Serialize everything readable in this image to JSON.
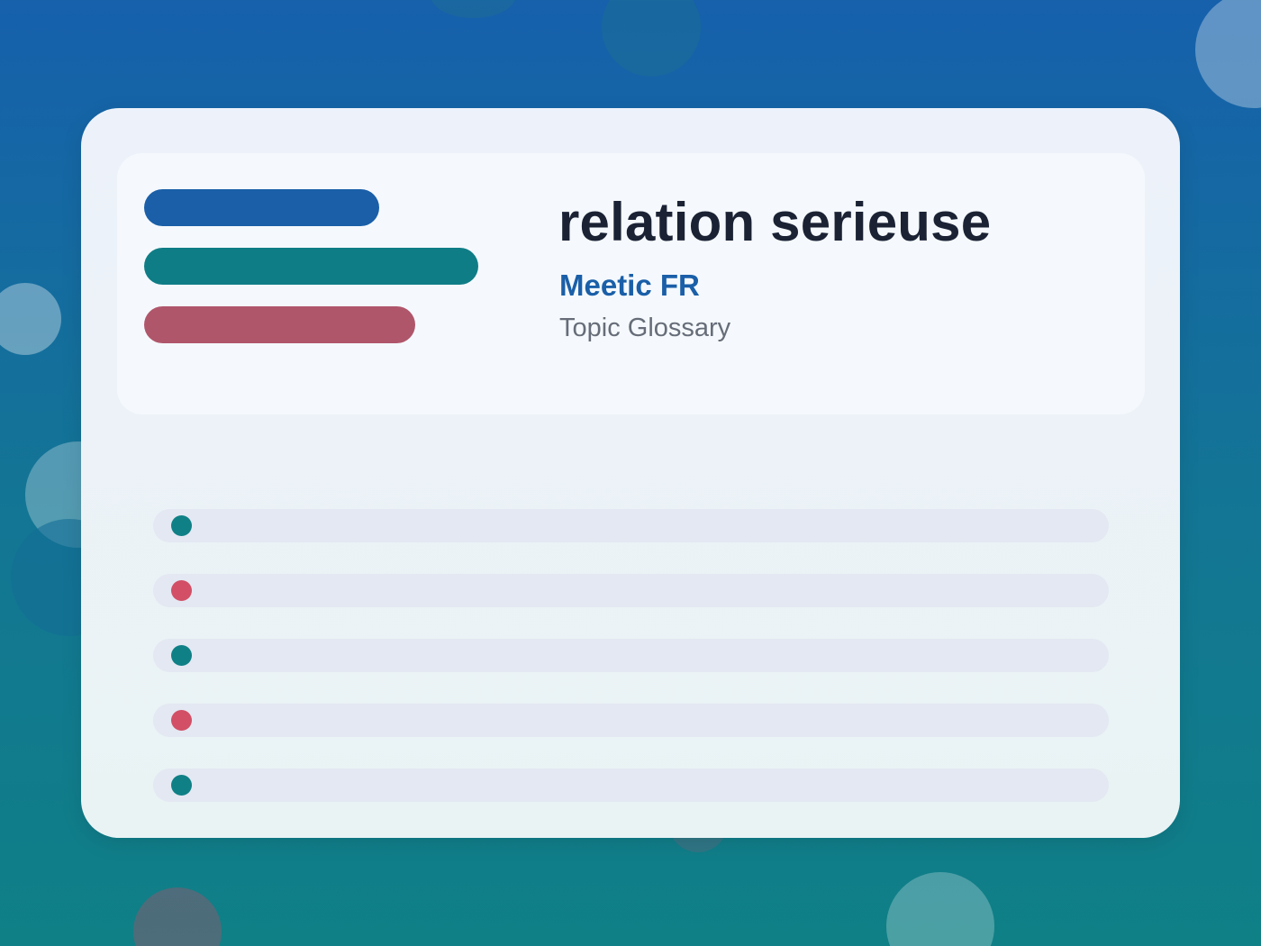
{
  "colors": {
    "accent_blue": "#1a5fa8",
    "accent_teal": "#0f7d86",
    "accent_rose": "#b0566b",
    "dot_teal": "#0f8086",
    "dot_rose": "#d24f66"
  },
  "header": {
    "title": "relation serieuse",
    "subtitle": "Meetic FR",
    "caption": "Topic Glossary"
  },
  "list": {
    "items": [
      {
        "marker": "teal"
      },
      {
        "marker": "rose"
      },
      {
        "marker": "teal"
      },
      {
        "marker": "rose"
      },
      {
        "marker": "teal"
      }
    ]
  }
}
